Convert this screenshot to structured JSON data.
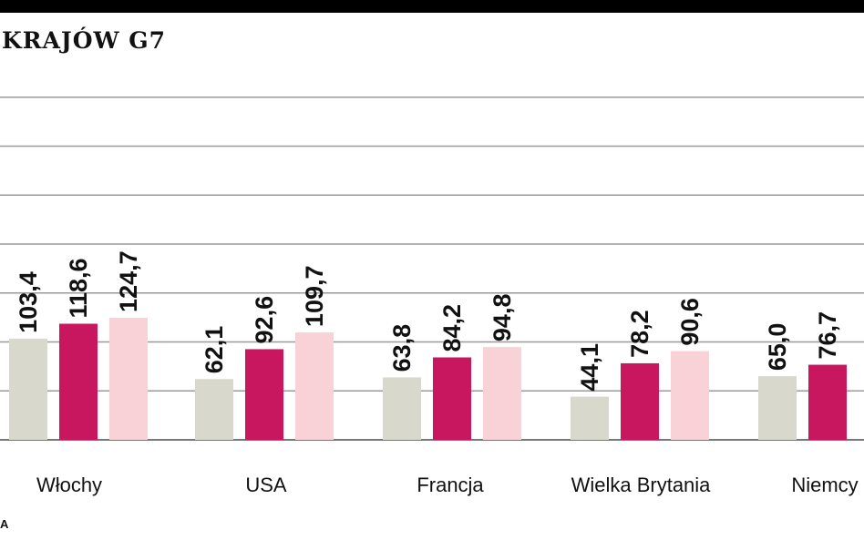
{
  "title": "KRAJÓW G7",
  "source": "A",
  "chart_data": {
    "type": "bar",
    "categories": [
      "Włochy",
      "USA",
      "Francja",
      "Wielka Brytania",
      "Niemcy"
    ],
    "series": [
      {
        "color": "#d8d8cd",
        "values": [
          103.4,
          62.1,
          63.8,
          44.1,
          65.0
        ]
      },
      {
        "color": "#c8175f",
        "values": [
          118.6,
          92.6,
          84.2,
          78.2,
          76.7
        ]
      },
      {
        "color": "#f9d2d7",
        "values": [
          124.7,
          109.7,
          94.8,
          90.6,
          null
        ]
      }
    ],
    "value_labels": [
      [
        "103,4",
        "118,6",
        "124,7"
      ],
      [
        "62,1",
        "92,6",
        "109,7"
      ],
      [
        "63,8",
        "84,2",
        "94,8"
      ],
      [
        "44,1",
        "78,2",
        "90,6"
      ],
      [
        "65,0",
        "76,7",
        ""
      ]
    ],
    "ylim": [
      0,
      350
    ],
    "grid": true,
    "legend": "none"
  }
}
